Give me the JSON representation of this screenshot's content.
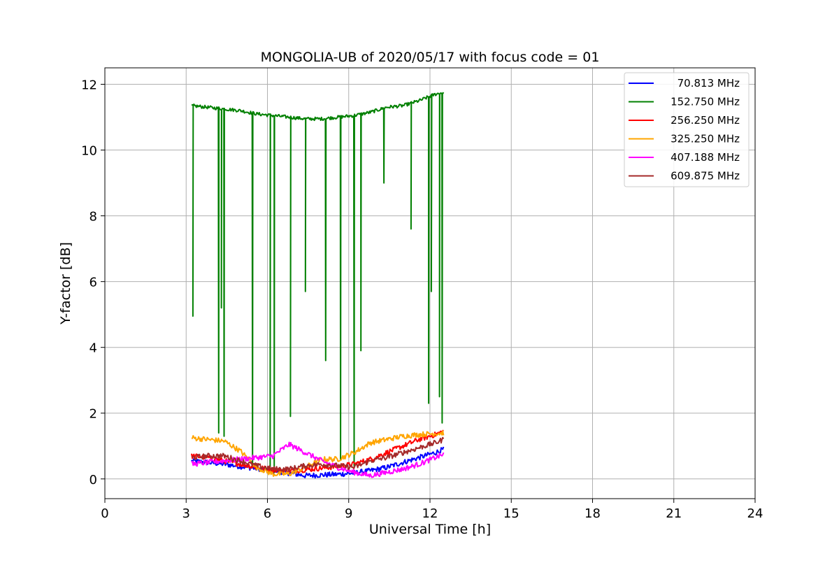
{
  "chart_data": {
    "type": "line",
    "title": "MONGOLIA-UB of 2020/05/17 with focus code = 01",
    "xlabel": "Universal Time [h]",
    "ylabel": "Y-factor [dB]",
    "xlim": [
      0,
      24
    ],
    "ylim": [
      -0.6,
      12.5
    ],
    "xticks": [
      0,
      3,
      6,
      9,
      12,
      15,
      18,
      21,
      24
    ],
    "yticks": [
      0,
      2,
      4,
      6,
      8,
      10,
      12
    ],
    "grid": true,
    "legend_position": "top-right",
    "x": [
      3.2,
      3.8,
      4.4,
      5.0,
      5.6,
      6.2,
      6.8,
      7.4,
      8.0,
      8.6,
      9.2,
      9.8,
      10.4,
      11.0,
      11.6,
      12.2,
      12.5
    ],
    "series": [
      {
        "name": "70.813 MHz",
        "color": "#0000ff",
        "values": [
          0.55,
          0.5,
          0.45,
          0.38,
          0.32,
          0.25,
          0.18,
          0.1,
          0.12,
          0.14,
          0.18,
          0.25,
          0.35,
          0.5,
          0.65,
          0.8,
          0.9
        ]
      },
      {
        "name": "152.750 MHz",
        "color": "#008000",
        "values": [
          11.35,
          11.3,
          11.25,
          11.2,
          11.1,
          11.05,
          11.0,
          10.95,
          10.95,
          11.0,
          11.05,
          11.15,
          11.3,
          11.35,
          11.5,
          11.7,
          11.75
        ],
        "dips": [
          [
            3.25,
            4.95
          ],
          [
            4.2,
            1.4
          ],
          [
            4.3,
            5.2
          ],
          [
            4.4,
            1.3
          ],
          [
            5.45,
            0.4
          ],
          [
            6.1,
            0.3
          ],
          [
            6.25,
            0.2
          ],
          [
            6.85,
            1.9
          ],
          [
            7.4,
            5.7
          ],
          [
            8.15,
            3.6
          ],
          [
            8.7,
            0.6
          ],
          [
            9.2,
            0.4
          ],
          [
            9.45,
            3.9
          ],
          [
            10.3,
            9.0
          ],
          [
            11.3,
            7.6
          ],
          [
            11.95,
            2.3
          ],
          [
            12.05,
            5.7
          ],
          [
            12.35,
            2.5
          ],
          [
            12.45,
            1.7
          ]
        ]
      },
      {
        "name": "256.250 MHz",
        "color": "#ff0000",
        "values": [
          0.7,
          0.65,
          0.55,
          0.45,
          0.35,
          0.28,
          0.25,
          0.28,
          0.33,
          0.38,
          0.45,
          0.6,
          0.8,
          1.0,
          1.2,
          1.35,
          1.45
        ]
      },
      {
        "name": "325.250 MHz",
        "color": "#ffa500",
        "values": [
          1.25,
          1.2,
          1.15,
          0.85,
          0.35,
          0.15,
          0.15,
          0.35,
          0.6,
          0.6,
          0.8,
          1.1,
          1.2,
          1.3,
          1.35,
          1.38,
          1.4
        ]
      },
      {
        "name": "407.188 MHz",
        "color": "#ff00ff",
        "values": [
          0.45,
          0.5,
          0.55,
          0.6,
          0.65,
          0.7,
          1.05,
          0.8,
          0.55,
          0.35,
          0.2,
          0.1,
          0.2,
          0.3,
          0.45,
          0.65,
          0.75
        ]
      },
      {
        "name": "609.875 MHz",
        "color": "#a52a2a",
        "values": [
          0.65,
          0.7,
          0.7,
          0.55,
          0.4,
          0.3,
          0.3,
          0.4,
          0.45,
          0.4,
          0.35,
          0.55,
          0.65,
          0.8,
          0.95,
          1.1,
          1.2
        ]
      }
    ]
  }
}
